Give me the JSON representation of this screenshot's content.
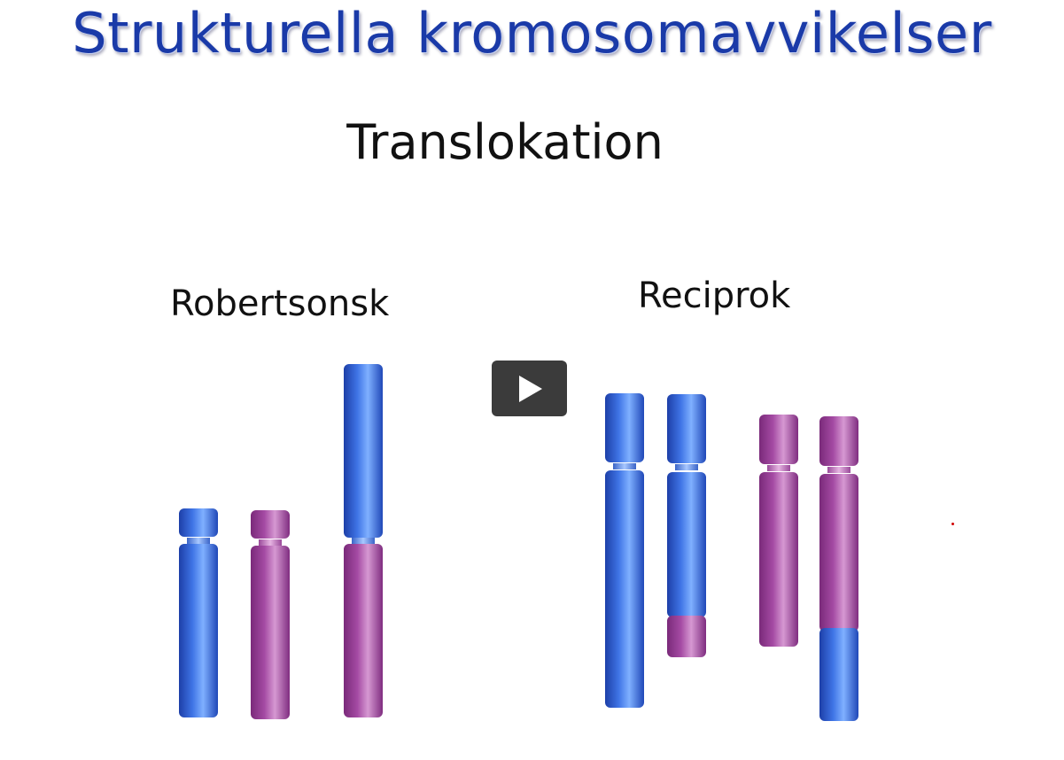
{
  "slide": {
    "title": "Strukturella kromosomavvikelser",
    "subtitle": "Translokation",
    "sections": {
      "robertsonian_label": "Robertsonsk",
      "reciprocal_label": "Reciprok"
    }
  },
  "colors": {
    "title": "#1a3aa8",
    "chromosome_blue": "#2a56c8",
    "chromosome_purple": "#9b3d99"
  },
  "video": {
    "play_icon": "play-icon"
  }
}
